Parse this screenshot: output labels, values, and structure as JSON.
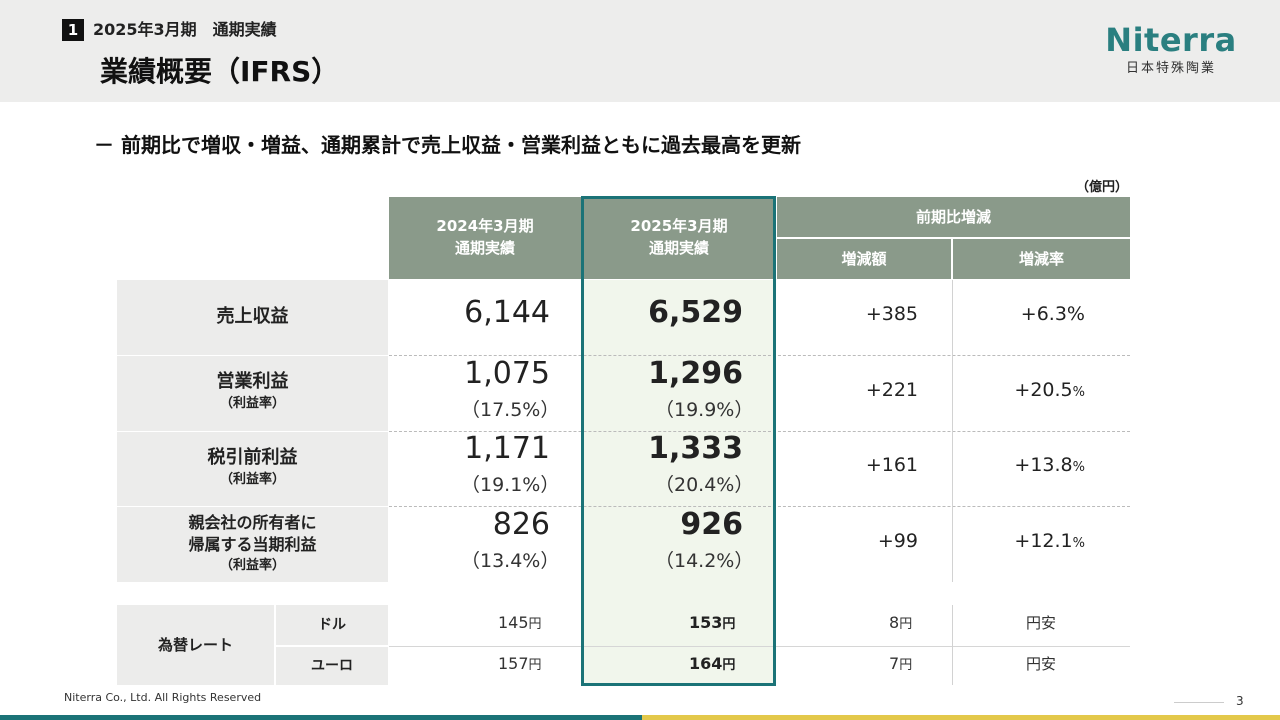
{
  "header": {
    "section_number": "1",
    "section_label": "2025年3月期　通期実績",
    "title": "業績概要（IFRS）",
    "logo_word": "Niterra",
    "logo_sub": "日本特殊陶業"
  },
  "headline": "－ 前期比で増収・増益、通期累計で売上収益・営業利益ともに過去最高を更新",
  "unit": "（億円）",
  "columns": {
    "prev": [
      "2024年3月期",
      "通期実績"
    ],
    "curr": [
      "2025年3月期",
      "通期実績"
    ],
    "change_group": "前期比増減",
    "change_amount": "増減額",
    "change_rate": "増減率"
  },
  "rows": [
    {
      "label": "売上収益",
      "sub": "",
      "prev": "6,144",
      "prev_pct": "",
      "curr": "6,529",
      "curr_pct": "",
      "diff": "+385",
      "rate": "+6.3%",
      "rate_unit": ""
    },
    {
      "label": "営業利益",
      "sub": "（利益率）",
      "prev": "1,075",
      "prev_pct": "（17.5%）",
      "curr": "1,296",
      "curr_pct": "（19.9%）",
      "diff": "+221",
      "rate": "+20.5",
      "rate_unit": "%"
    },
    {
      "label": "税引前利益",
      "sub": "（利益率）",
      "prev": "1,171",
      "prev_pct": "（19.1%）",
      "curr": "1,333",
      "curr_pct": "（20.4%）",
      "diff": "+161",
      "rate": "+13.8",
      "rate_unit": "%"
    },
    {
      "label_line1": "親会社の所有者に",
      "label_line2": "帰属する当期利益",
      "sub": "（利益率）",
      "prev": "826",
      "prev_pct": "（13.4%）",
      "curr": "926",
      "curr_pct": "（14.2%）",
      "diff": "+99",
      "rate": "+12.1",
      "rate_unit": "%"
    }
  ],
  "fx": {
    "label": "為替レート",
    "yen": "円",
    "rows": [
      {
        "currency": "ドル",
        "prev": "145",
        "curr": "153",
        "diff": "8",
        "note": "円安"
      },
      {
        "currency": "ユーロ",
        "prev": "157",
        "curr": "164",
        "diff": "7",
        "note": "円安"
      }
    ]
  },
  "footer": "Niterra Co., Ltd. All Rights Reserved",
  "page_number": "3"
}
